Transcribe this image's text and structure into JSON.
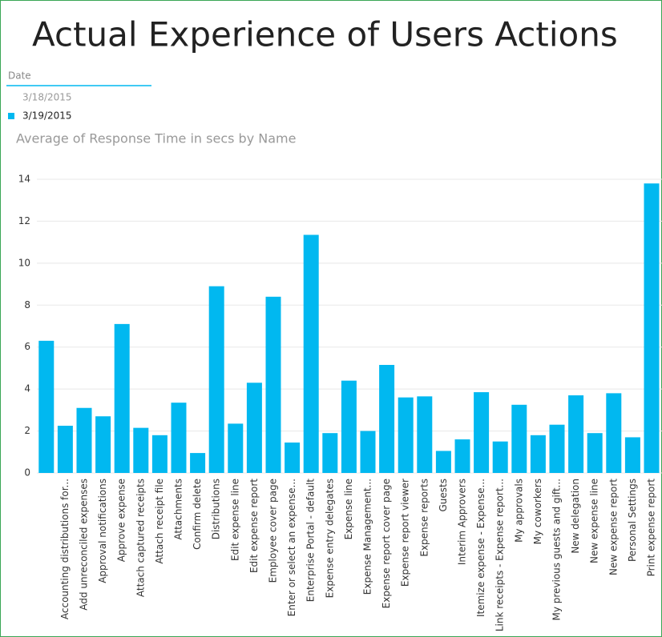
{
  "page_title": "Actual Experience of Users Actions",
  "slicer": {
    "title": "Date",
    "items": [
      "3/18/2015",
      "3/19/2015"
    ],
    "selected": 1
  },
  "chart_data": {
    "type": "bar",
    "title": "Average of Response Time in secs by Name",
    "categories": [
      null,
      "Accounting distributions for...",
      "Add unreconciled expenses",
      "Approval notifications",
      "Approve expense",
      "Attach captured receipts",
      "Attach receipt file",
      "Attachments",
      "Confirm delete",
      "Distributions",
      "Edit expense line",
      "Edit expense report",
      "Employee cover page",
      "Enter or select an expense...",
      "Enterprise Portal - default",
      "Expense entry delegates",
      "Expense line",
      "Expense Management...",
      "Expense report cover page",
      "Expense report viewer",
      "Expense reports",
      "Guests",
      "Interim Approvers",
      "Itemize expense - Expense...",
      "Link receipts - Expense report...",
      "My approvals",
      "My coworkers",
      "My previous guests and gift...",
      "New delegation",
      "New expense line",
      "New expense report",
      "Personal Settings",
      "Print expense report"
    ],
    "values": [
      6.3,
      2.25,
      3.1,
      2.7,
      7.1,
      2.15,
      1.8,
      3.35,
      0.95,
      8.9,
      2.35,
      4.3,
      8.4,
      1.45,
      11.35,
      1.9,
      4.4,
      2.0,
      5.15,
      3.6,
      3.65,
      1.05,
      1.6,
      3.85,
      1.5,
      3.25,
      1.8,
      2.3,
      3.7,
      1.9,
      3.8,
      1.7,
      13.8
    ],
    "color": "#01b8f0",
    "ylim": [
      0,
      14
    ],
    "yticks": [
      0,
      2,
      4,
      6,
      8,
      10,
      12,
      14
    ],
    "grid": true
  }
}
